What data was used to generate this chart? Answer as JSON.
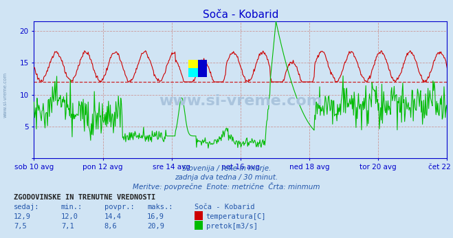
{
  "title": "Soča - Kobarid",
  "background_color": "#d0e4f4",
  "plot_bg_color": "#d0e4f4",
  "xlabel_ticks": [
    "sob 10 avg",
    "pon 12 avg",
    "sre 14 avg",
    "pet 16 avg",
    "ned 18 avg",
    "tor 20 avg",
    "čet 22 avg"
  ],
  "ylim": [
    0,
    21.5
  ],
  "xlim_days": 14,
  "n_points": 672,
  "temp_color": "#cc0000",
  "flow_color": "#00bb00",
  "hline_value": 12.0,
  "hline_color": "#cc0000",
  "grid_color": "#cc9999",
  "axis_color": "#0000cc",
  "title_color": "#0000cc",
  "subtitle_lines": [
    "Slovenija / reke in morje.",
    "zadnja dva tedna / 30 minut.",
    "Meritve: povprečne  Enote: metrične  Črta: minmum"
  ],
  "subtitle_color": "#2255aa",
  "table_header": "ZGODOVINSKE IN TRENUTNE VREDNOSTI",
  "table_cols": [
    "sedaj:",
    "min.:",
    "povpr.:",
    "maks.:",
    "Soča - Kobarid"
  ],
  "table_row1": [
    "12,9",
    "12,0",
    "14,4",
    "16,9",
    "temperatura[C]"
  ],
  "table_row2": [
    "7,5",
    "7,1",
    "8,6",
    "20,9",
    "pretok[m3/s]"
  ],
  "watermark_color": "#aac4dd",
  "left_text_color": "#7799bb",
  "tick_label_color": "#0000cc"
}
